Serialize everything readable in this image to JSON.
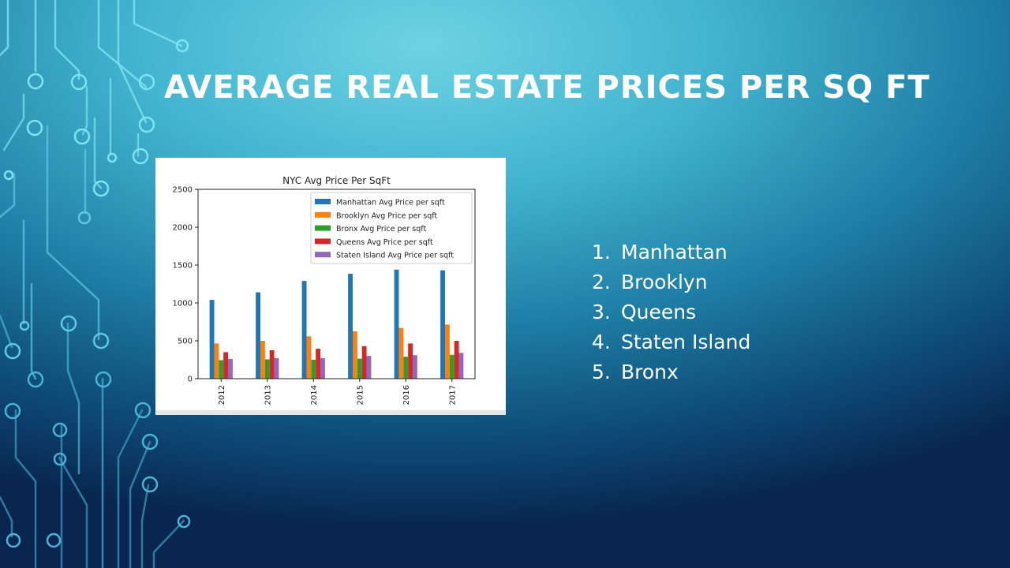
{
  "slide": {
    "title": "AVERAGE REAL ESTATE PRICES PER SQ FT",
    "ranking": [
      {
        "number": "1.",
        "label": "Manhattan"
      },
      {
        "number": "2.",
        "label": "Brooklyn"
      },
      {
        "number": "3.",
        "label": "Queens"
      },
      {
        "number": "4.",
        "label": "Staten Island"
      },
      {
        "number": "5.",
        "label": "Bronx"
      }
    ]
  },
  "chart_data": {
    "type": "bar",
    "title": "NYC Avg Price Per SqFt",
    "xlabel": "",
    "ylabel": "",
    "categories": [
      "2012",
      "2013",
      "2014",
      "2015",
      "2016",
      "2017"
    ],
    "ylim": [
      0,
      2500
    ],
    "yticks": [
      0,
      500,
      1000,
      1500,
      2000,
      2500
    ],
    "grid": false,
    "legend_position": "top-right",
    "series": [
      {
        "name": "Manhattan Avg Price per sqft",
        "color": "#1f77b4",
        "values": [
          1040,
          1140,
          1290,
          1385,
          1440,
          1430
        ]
      },
      {
        "name": "Brooklyn Avg Price per sqft",
        "color": "#ff7f0e",
        "values": [
          465,
          500,
          560,
          625,
          670,
          715
        ]
      },
      {
        "name": "Bronx Avg Price per sqft",
        "color": "#2ca02c",
        "values": [
          245,
          255,
          250,
          265,
          290,
          315
        ]
      },
      {
        "name": "Queens Avg Price per sqft",
        "color": "#d62728",
        "values": [
          350,
          375,
          395,
          430,
          465,
          500
        ]
      },
      {
        "name": "Staten Island Avg Price per sqft",
        "color": "#9467bd",
        "values": [
          260,
          270,
          270,
          300,
          310,
          340
        ]
      }
    ]
  }
}
